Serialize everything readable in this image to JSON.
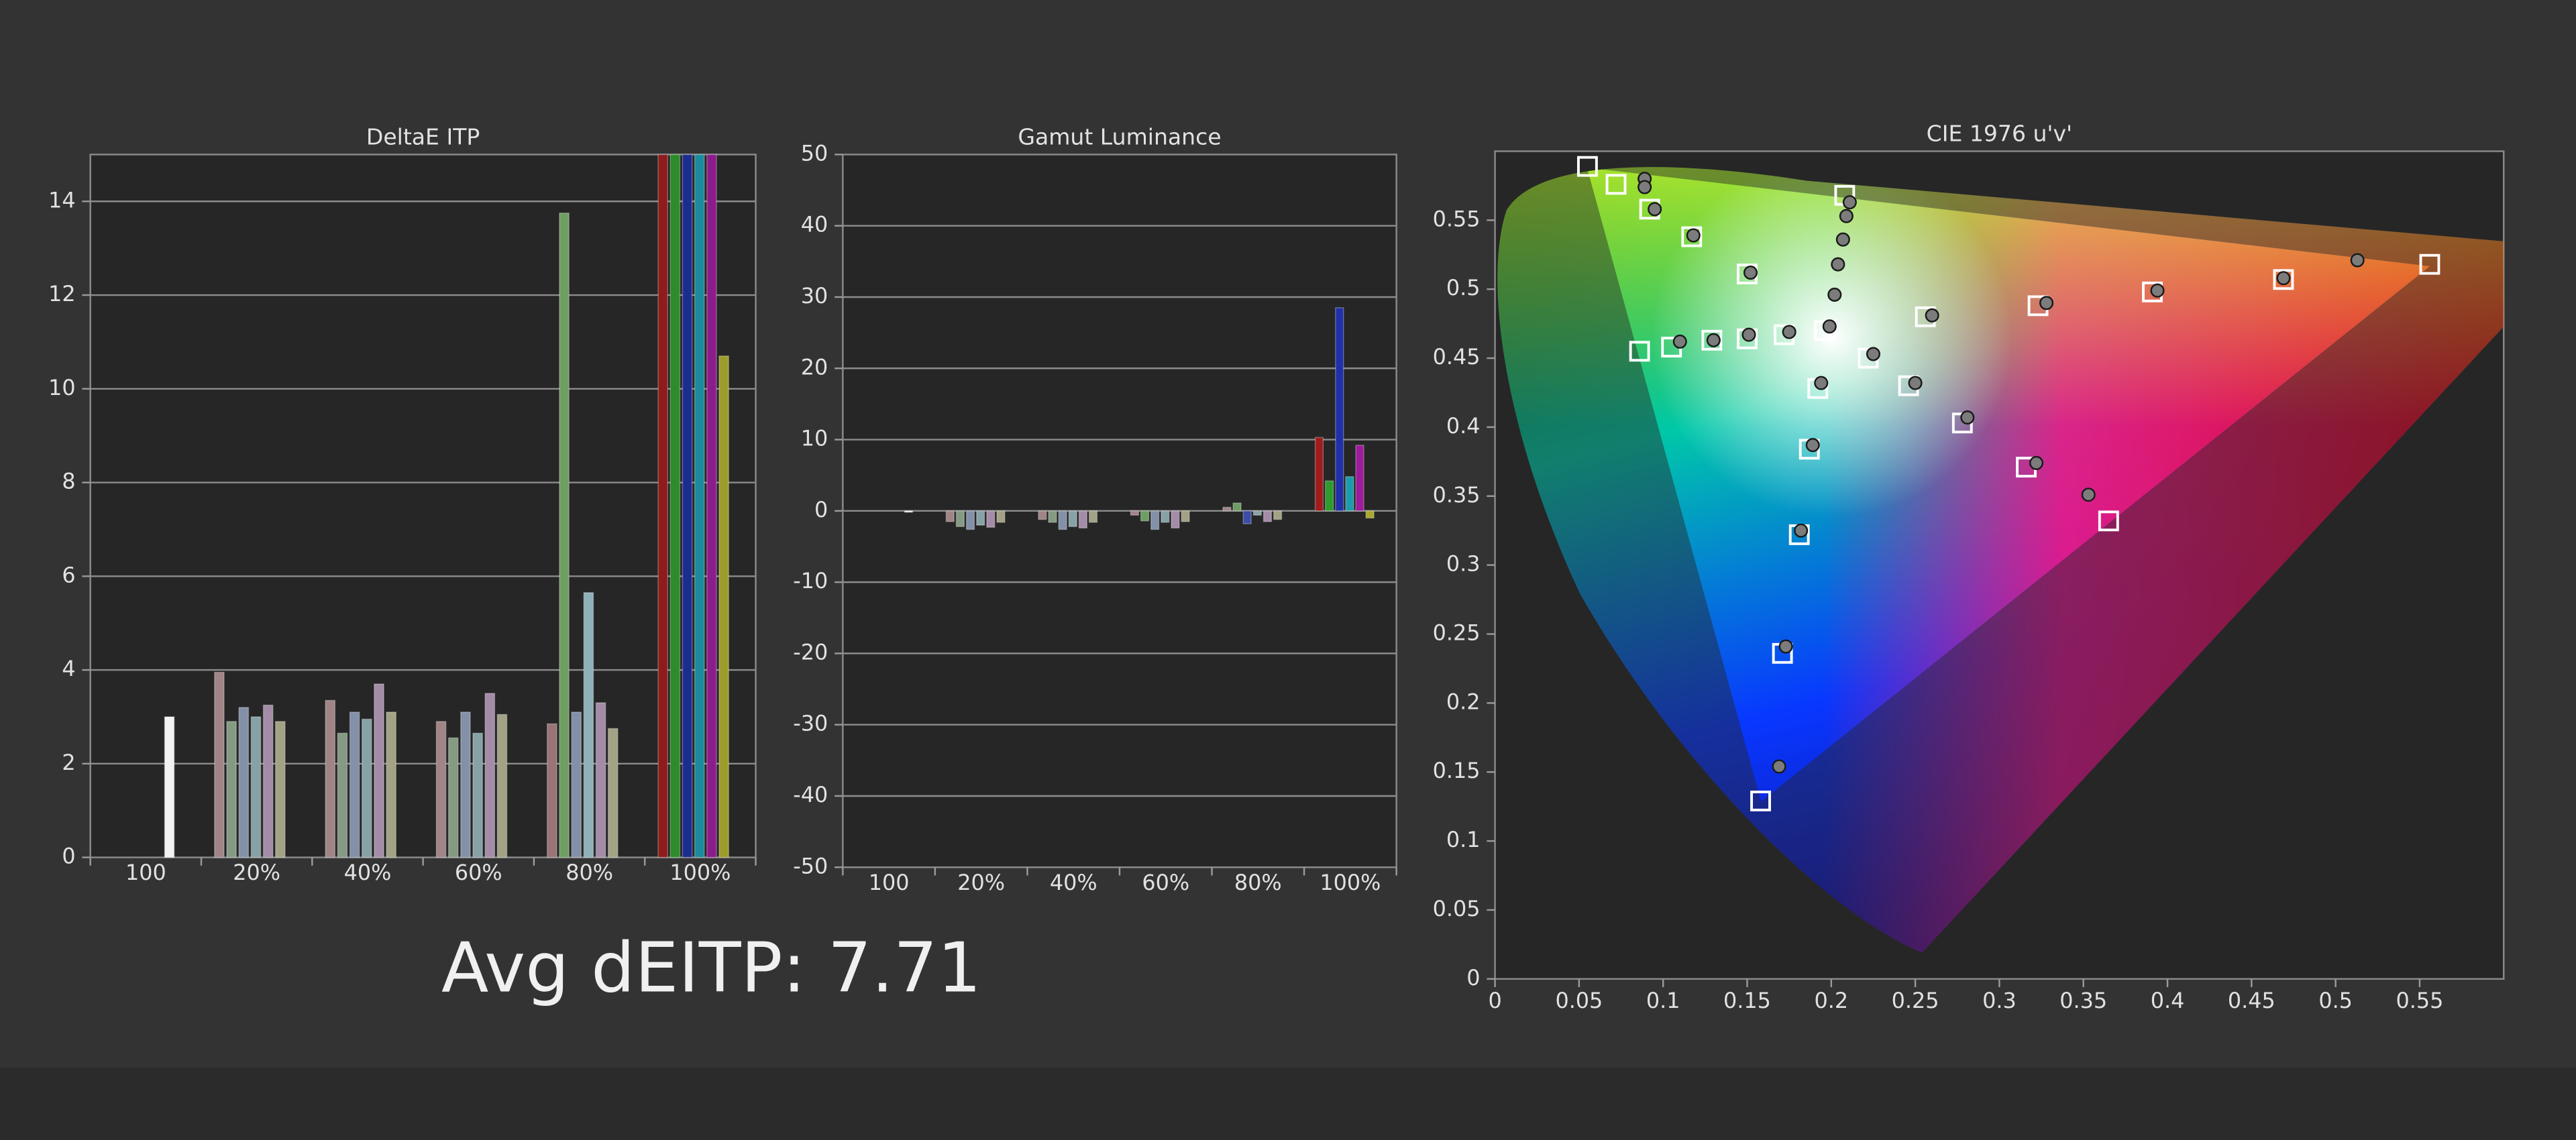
{
  "annotation": "Avg dEITP: 7.71",
  "chart_data": [
    {
      "type": "bar",
      "title": "DeltaE ITP",
      "categories": [
        "100",
        "20%",
        "40%",
        "60%",
        "80%",
        "100%"
      ],
      "groups": [
        {
          "colors": [
            "#f2f2f2"
          ],
          "values": [
            3.0
          ]
        },
        {
          "colors": [
            "#a08486",
            "#859a83",
            "#8390a8",
            "#86a2a6",
            "#a48ca8",
            "#a3a285"
          ],
          "values": [
            3.95,
            2.9,
            3.2,
            3.0,
            3.25,
            2.9
          ]
        },
        {
          "colors": [
            "#a08486",
            "#859a83",
            "#8390a8",
            "#86a2a6",
            "#a48ca8",
            "#a3a285"
          ],
          "values": [
            3.35,
            2.65,
            3.1,
            2.95,
            3.7,
            3.1
          ]
        },
        {
          "colors": [
            "#a08486",
            "#859a83",
            "#8390a8",
            "#86a2a6",
            "#a48ca8",
            "#a3a285"
          ],
          "values": [
            2.9,
            2.55,
            3.1,
            2.65,
            3.5,
            3.05
          ]
        },
        {
          "colors": [
            "#9a7476",
            "#6e9e62",
            "#8390a8",
            "#8fb0b8",
            "#a48ca8",
            "#a3a285"
          ],
          "values": [
            2.85,
            13.75,
            3.1,
            5.65,
            3.3,
            2.75
          ]
        },
        {
          "colors": [
            "#8e1c1c",
            "#2c8c2c",
            "#1c2c90",
            "#1c8c9c",
            "#8c1c8c",
            "#9c9c2c"
          ],
          "values": [
            15,
            15,
            15,
            15,
            15,
            10.7
          ]
        }
      ],
      "ylim": [
        0,
        15
      ],
      "yticks": [
        0,
        2,
        4,
        6,
        8,
        10,
        12,
        14
      ],
      "grid": true
    },
    {
      "type": "bar",
      "title": "Gamut Luminance",
      "categories": [
        "100",
        "20%",
        "40%",
        "60%",
        "80%",
        "100%"
      ],
      "groups": [
        {
          "colors": [
            "#f2f2f2"
          ],
          "values": [
            0
          ]
        },
        {
          "colors": [
            "#a08486",
            "#859a83",
            "#8390a8",
            "#86a2a6",
            "#a48ca8",
            "#a3a285"
          ],
          "values": [
            -1.5,
            -2.2,
            -2.6,
            -2.0,
            -2.3,
            -1.6
          ]
        },
        {
          "colors": [
            "#a08486",
            "#859a83",
            "#8390a8",
            "#86a2a6",
            "#a48ca8",
            "#a3a285"
          ],
          "values": [
            -1.2,
            -1.6,
            -2.6,
            -2.2,
            -2.4,
            -1.6
          ]
        },
        {
          "colors": [
            "#a08486",
            "#6e9e62",
            "#8390a8",
            "#86a2a6",
            "#a48ca8",
            "#a3a285"
          ],
          "values": [
            -0.6,
            -1.4,
            -2.6,
            -1.6,
            -2.4,
            -1.5
          ]
        },
        {
          "colors": [
            "#a08486",
            "#6e9e62",
            "#3c4ca8",
            "#86a2a6",
            "#a48ca8",
            "#a3a285"
          ],
          "values": [
            0.5,
            1.1,
            -1.8,
            -0.6,
            -1.5,
            -1.2
          ]
        },
        {
          "colors": [
            "#a01c1c",
            "#2c9c2c",
            "#2030a8",
            "#1c9cac",
            "#9c1c9c",
            "#a8a82c"
          ],
          "values": [
            10.3,
            4.2,
            28.5,
            4.8,
            9.2,
            -1.0
          ]
        }
      ],
      "ylim": [
        -50,
        50
      ],
      "yticks": [
        -50,
        -40,
        -30,
        -20,
        -10,
        0,
        10,
        20,
        30,
        40,
        50
      ],
      "grid": true
    },
    {
      "type": "scatter",
      "title": "CIE 1976 u'v'",
      "xlim": [
        0,
        0.6
      ],
      "ylim": [
        0,
        0.6
      ],
      "xticks": [
        0,
        0.05,
        0.1,
        0.15,
        0.2,
        0.25,
        0.3,
        0.35,
        0.4,
        0.45,
        0.5,
        0.55
      ],
      "yticks": [
        0,
        0.05,
        0.1,
        0.15,
        0.2,
        0.25,
        0.3,
        0.35,
        0.4,
        0.45,
        0.5,
        0.55
      ],
      "series": [
        {
          "marker": "square",
          "color": "#ffffff",
          "x": [
            0.055,
            0.072,
            0.092,
            0.117,
            0.15,
            0.086,
            0.105,
            0.129,
            0.15,
            0.172,
            0.208,
            0.196,
            0.222,
            0.246,
            0.192,
            0.187,
            0.181,
            0.171,
            0.158,
            0.256,
            0.323,
            0.391,
            0.469,
            0.556,
            0.278,
            0.316,
            0.365
          ],
          "y": [
            0.589,
            0.576,
            0.558,
            0.538,
            0.511,
            0.455,
            0.458,
            0.463,
            0.464,
            0.467,
            0.568,
            0.47,
            0.45,
            0.43,
            0.428,
            0.384,
            0.322,
            0.236,
            0.129,
            0.48,
            0.488,
            0.498,
            0.507,
            0.518,
            0.403,
            0.371,
            0.332
          ]
        },
        {
          "marker": "circle",
          "color": "#7c7c7c",
          "x": [
            0.089,
            0.089,
            0.095,
            0.118,
            0.152,
            0.11,
            0.13,
            0.151,
            0.175,
            0.199,
            0.211,
            0.209,
            0.207,
            0.204,
            0.202,
            0.225,
            0.25,
            0.194,
            0.189,
            0.182,
            0.173,
            0.169,
            0.26,
            0.328,
            0.394,
            0.469,
            0.513,
            0.281,
            0.322,
            0.353
          ],
          "y": [
            0.58,
            0.574,
            0.558,
            0.539,
            0.512,
            0.462,
            0.463,
            0.467,
            0.469,
            0.473,
            0.563,
            0.553,
            0.536,
            0.518,
            0.496,
            0.453,
            0.432,
            0.432,
            0.387,
            0.325,
            0.241,
            0.154,
            0.481,
            0.49,
            0.499,
            0.508,
            0.521,
            0.407,
            0.374,
            0.351
          ]
        }
      ]
    }
  ]
}
